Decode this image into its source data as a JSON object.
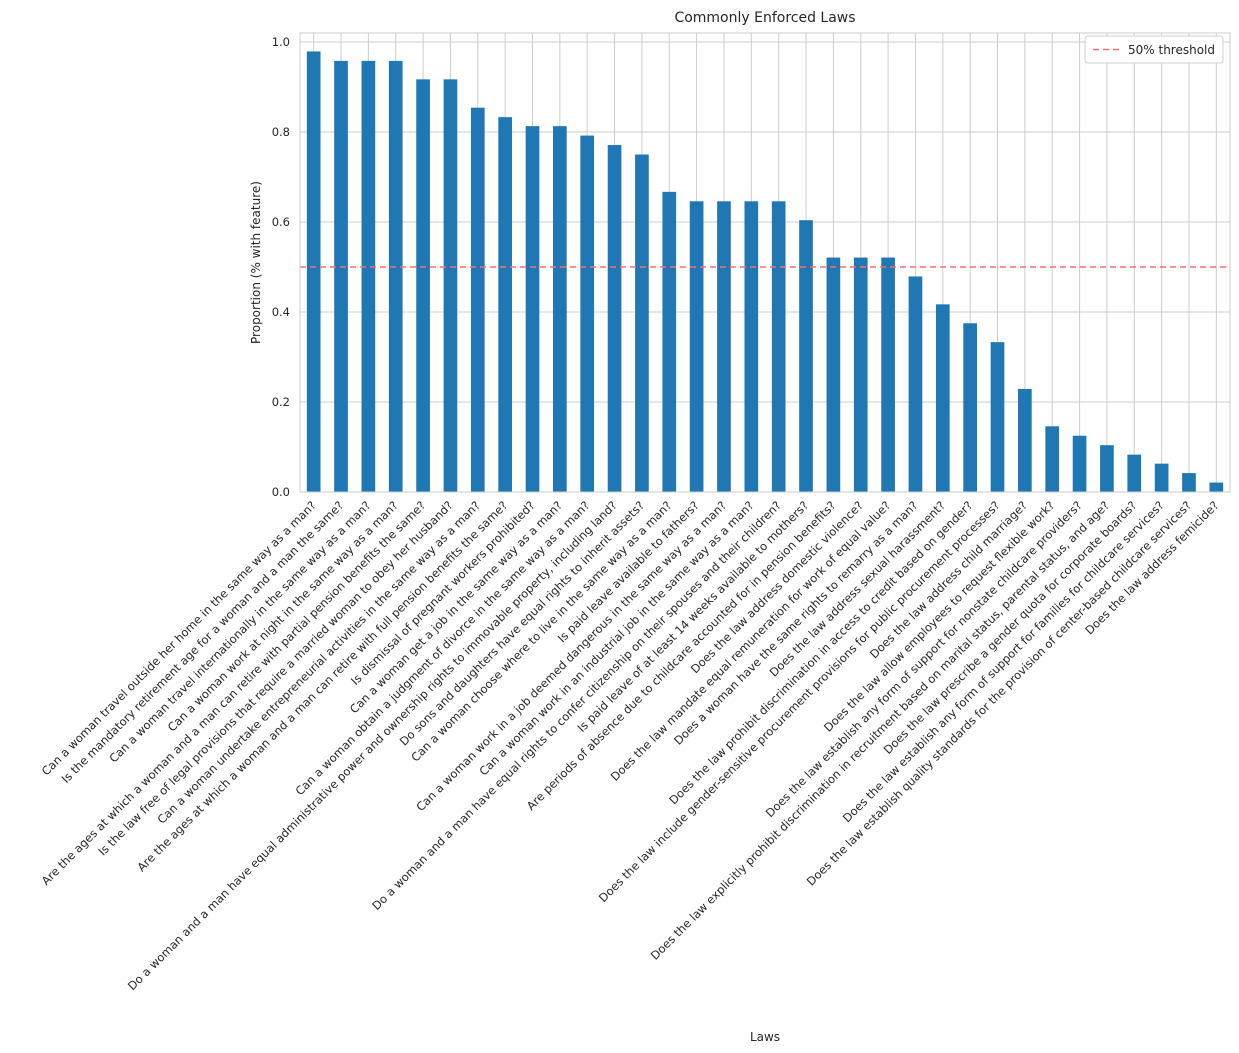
{
  "chart_data": {
    "type": "bar",
    "title": "Commonly Enforced Laws",
    "xlabel": "Laws",
    "ylabel": "Proportion (% with feature)",
    "ylim": [
      0,
      1.02
    ],
    "yticks": [
      "0.0",
      "0.2",
      "0.4",
      "0.6",
      "0.8",
      "1.0"
    ],
    "grid": true,
    "legend_position": "top-right",
    "bar_color": "#1f77b4",
    "categories": [
      "Can a woman travel outside her home in the same way as a man?",
      "Is the mandatory retirement age for a woman and a man the same?",
      "Can a woman travel internationally in the same way as a man?",
      "Can a woman work at night in the same way as a man?",
      "Are the ages at which a woman and a man can retire with partial pension benefits the same?",
      "Is the law free of legal provisions that require a married woman to obey her husband?",
      "Can a woman undertake entrepreneurial activities in the same way as a man?",
      "Are the ages at which a woman and a man can retire with full pension benefits the same?",
      "Is dismissal of pregnant workers prohibited?",
      "Can a woman get a job in the same way as a man?",
      "Can a woman obtain a judgment of divorce in the same way as a man?",
      "Do a woman and a man have equal administrative power and ownership rights to immovable property, including land?",
      "Do sons and daughters have equal rights to inherit assets?",
      "Can a woman choose where to live in the same way as a man?",
      "Is paid leave available to fathers?",
      "Can a woman work in a job deemed dangerous in the same way as a man?",
      "Can a woman work in an industrial job in the same way as a man?",
      "Do a woman and a man have equal rights to confer citizenship on their spouses and their children?",
      "Is paid leave of at least 14 weeks available to mothers?",
      "Are periods of absence due to childcare accounted for in pension benefits?",
      "Does the law address domestic violence?",
      "Does the law mandate equal remuneration for work of equal value?",
      "Does a woman have the same rights to remarry as a man?",
      "Does the law address sexual harassment?",
      "Does the law prohibit discrimination in access to credit based on gender?",
      "Does the law include gender-sensitive procurement provisions for public procurement processes?",
      "Does the law address child marriage?",
      "Does the law allow employees to request flexible work?",
      "Does the law establish any form of support for nonstate childcare providers?",
      "Does the law explicitly prohibit discrimination in recruitment based on marital status, parental status, and age?",
      "Does the law prescribe a gender quota for corporate boards?",
      "Does the law establish any form of support for families for childcare services?",
      "Does the law establish quality standards for the provision of center-based childcare services?",
      "Does the law address femicide?"
    ],
    "values": [
      0.979,
      0.958,
      0.958,
      0.958,
      0.917,
      0.917,
      0.854,
      0.833,
      0.813,
      0.813,
      0.792,
      0.771,
      0.75,
      0.667,
      0.646,
      0.646,
      0.646,
      0.646,
      0.604,
      0.521,
      0.521,
      0.521,
      0.479,
      0.417,
      0.375,
      0.333,
      0.229,
      0.146,
      0.125,
      0.104,
      0.083,
      0.063,
      0.042,
      0.021
    ],
    "threshold": {
      "label": "50% threshold",
      "value": 0.5,
      "color": "#ff6b6b",
      "style": "dashed"
    }
  }
}
